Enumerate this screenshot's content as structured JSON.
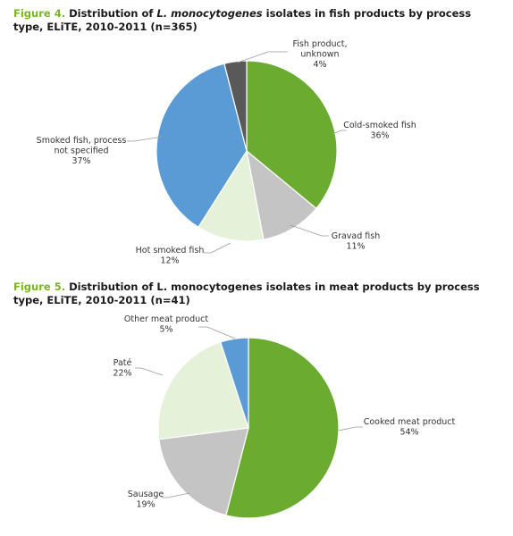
{
  "figure4": {
    "label": "Figure 4.",
    "title_pre": "Distribution of ",
    "title_italic": "L. monocytogenes",
    "title_post": " isolates in fish products by process type, ELiTE, 2010-2011 (n=365)"
  },
  "figure5": {
    "label": "Figure 5.",
    "title_text": "Distribution of L. monocytogenes isolates in meat products by process type, ELiTE, 2010-2011 (n=41)"
  },
  "chart_data": [
    {
      "type": "pie",
      "title": "Distribution of L. monocytogenes isolates in fish products by process type, ELiTE, 2010-2011 (n=365)",
      "slices": [
        {
          "name": "Cold-smoked fish",
          "value": 36,
          "value_label": "36%",
          "color": "#6aab30",
          "label_lines": [
            "Cold-smoked fish"
          ]
        },
        {
          "name": "Gravad fish",
          "value": 11,
          "value_label": "11%",
          "color": "#c4c4c4",
          "label_lines": [
            "Gravad fish"
          ]
        },
        {
          "name": "Hot smoked fish",
          "value": 12,
          "value_label": "12%",
          "color": "#e6f1da",
          "label_lines": [
            "Hot smoked fish"
          ]
        },
        {
          "name": "Smoked fish, process not specified",
          "value": 37,
          "value_label": "37%",
          "color": "#5b9bd5",
          "label_lines": [
            "Smoked fish, process",
            "not specified"
          ]
        },
        {
          "name": "Fish product, unknown",
          "value": 4,
          "value_label": "4%",
          "color": "#595959",
          "label_lines": [
            "Fish product,",
            "unknown"
          ]
        }
      ]
    },
    {
      "type": "pie",
      "title": "Distribution of L. monocytogenes isolates in meat products by process type, ELiTE, 2010-2011 (n=41)",
      "slices": [
        {
          "name": "Cooked meat product",
          "value": 54,
          "value_label": "54%",
          "color": "#6aab30",
          "label_lines": [
            "Cooked meat product"
          ]
        },
        {
          "name": "Sausage",
          "value": 19,
          "value_label": "19%",
          "color": "#c4c4c4",
          "label_lines": [
            "Sausage"
          ]
        },
        {
          "name": "Paté",
          "value": 22,
          "value_label": "22%",
          "color": "#e6f1da",
          "label_lines": [
            "Paté"
          ]
        },
        {
          "name": "Other meat product",
          "value": 5,
          "value_label": "5%",
          "color": "#5b9bd5",
          "label_lines": [
            "Other meat product"
          ]
        }
      ]
    }
  ]
}
